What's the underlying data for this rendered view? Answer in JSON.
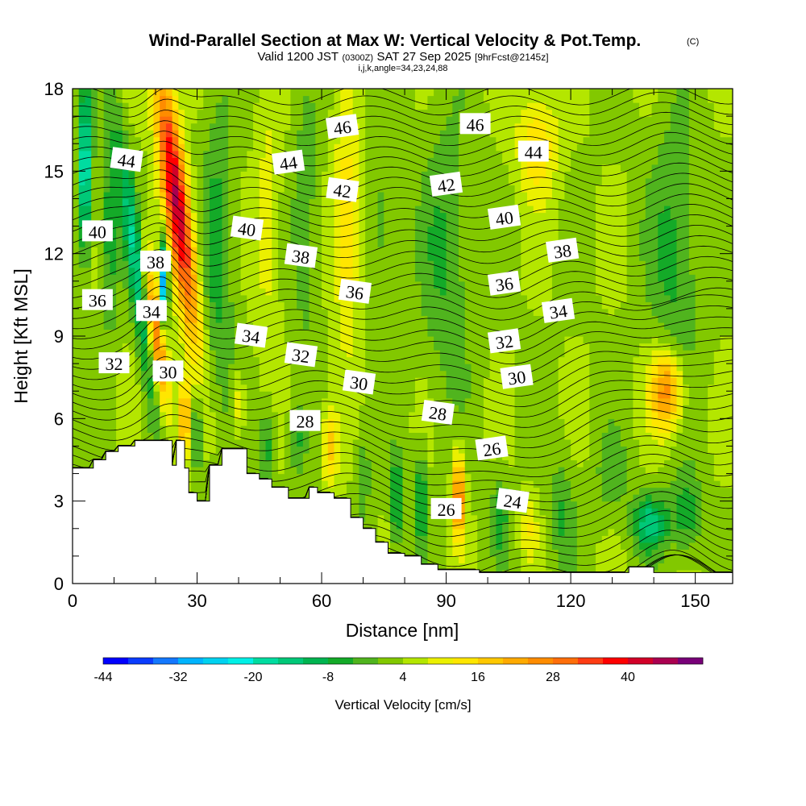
{
  "chart_data": {
    "type": "heatmap",
    "title": "Wind-Parallel Section at Max W: Vertical Velocity & Pot.Temp.",
    "copyright_mark": "(C)",
    "subtitle": {
      "valid_prefix": "Valid 1200 JST",
      "utc": "(0300Z)",
      "date": "SAT 27 Sep 2025",
      "forecast": "[9hrFcst@2145z]"
    },
    "subsubtitle": "i,j,k,angle=34,23,24,88",
    "xlabel": "Distance [nm]",
    "ylabel": "Height [Kft MSL]",
    "xlim": [
      0,
      159
    ],
    "ylim": [
      0,
      18
    ],
    "x_ticks": [
      "0",
      "30",
      "60",
      "90",
      "120",
      "150"
    ],
    "y_ticks": [
      "0",
      "3",
      "6",
      "9",
      "12",
      "15",
      "18"
    ],
    "x_tick_values": [
      0,
      30,
      60,
      90,
      120,
      150
    ],
    "y_tick_values": [
      0,
      3,
      6,
      9,
      12,
      15,
      18
    ],
    "colorbar": {
      "title": "Vertical Velocity [cm/s]",
      "min": -44,
      "max": 52,
      "step": 4,
      "labels": [
        "-44",
        "-32",
        "-20",
        "-8",
        "4",
        "16",
        "28",
        "40"
      ],
      "label_values": [
        -44,
        -32,
        -20,
        -8,
        4,
        16,
        28,
        40
      ],
      "colors": [
        "#0000ff",
        "#0a3cff",
        "#1478ff",
        "#00b4ff",
        "#00d2f0",
        "#00f0e6",
        "#00dca0",
        "#00c878",
        "#00b450",
        "#14aa28",
        "#50b41e",
        "#82c800",
        "#b4e600",
        "#ebf000",
        "#ffe600",
        "#ffc800",
        "#ffaa00",
        "#ff8c00",
        "#ff6e0a",
        "#ff3c14",
        "#ff0000",
        "#d20028",
        "#aa0050",
        "#780078"
      ]
    },
    "terrain_profile": [
      [
        0,
        4.2
      ],
      [
        5,
        4.5
      ],
      [
        8,
        4.8
      ],
      [
        11,
        5.0
      ],
      [
        15,
        5.2
      ],
      [
        24,
        5.2
      ],
      [
        24,
        4.3
      ],
      [
        25,
        4.3
      ],
      [
        25,
        5.2
      ],
      [
        27,
        4.2
      ],
      [
        28,
        3.3
      ],
      [
        29,
        3.3
      ],
      [
        30,
        3.0
      ],
      [
        32,
        3.0
      ],
      [
        33,
        4.3
      ],
      [
        36,
        4.3
      ],
      [
        36,
        4.9
      ],
      [
        42,
        4.9
      ],
      [
        42,
        4.0
      ],
      [
        45,
        3.8
      ],
      [
        48,
        3.5
      ],
      [
        52,
        3.1
      ],
      [
        55,
        3.1
      ],
      [
        57,
        3.5
      ],
      [
        59,
        3.3
      ],
      [
        60,
        3.3
      ],
      [
        61,
        3.3
      ],
      [
        63,
        3.1
      ],
      [
        65,
        3.1
      ],
      [
        67,
        2.4
      ],
      [
        70,
        2.0
      ],
      [
        73,
        1.5
      ],
      [
        76,
        1.1
      ],
      [
        80,
        1.0
      ],
      [
        84,
        0.7
      ],
      [
        88,
        0.5
      ],
      [
        90,
        0.5
      ],
      [
        93,
        0.5
      ],
      [
        98,
        0.4
      ],
      [
        112,
        0.4
      ],
      [
        122,
        0.4
      ],
      [
        134,
        0.4
      ],
      [
        134,
        0.6
      ],
      [
        140,
        0.6
      ],
      [
        140,
        0.4
      ],
      [
        159,
        0.4
      ]
    ],
    "theta_contours_K": [
      24,
      26,
      28,
      30,
      32,
      34,
      36,
      38,
      40,
      42,
      44,
      46
    ],
    "contour_labels": [
      {
        "text": "46",
        "x": 65,
        "y": 16.6
      },
      {
        "text": "46",
        "x": 97,
        "y": 16.7
      },
      {
        "text": "44",
        "x": 13,
        "y": 15.4
      },
      {
        "text": "44",
        "x": 52,
        "y": 15.3
      },
      {
        "text": "44",
        "x": 111,
        "y": 15.7
      },
      {
        "text": "42",
        "x": 65,
        "y": 14.3
      },
      {
        "text": "42",
        "x": 90,
        "y": 14.5
      },
      {
        "text": "40",
        "x": 6,
        "y": 12.8
      },
      {
        "text": "40",
        "x": 42,
        "y": 12.9
      },
      {
        "text": "40",
        "x": 104,
        "y": 13.3
      },
      {
        "text": "38",
        "x": 20,
        "y": 11.7
      },
      {
        "text": "38",
        "x": 55,
        "y": 11.9
      },
      {
        "text": "38",
        "x": 118,
        "y": 12.1
      },
      {
        "text": "36",
        "x": 6,
        "y": 10.3
      },
      {
        "text": "36",
        "x": 68,
        "y": 10.6
      },
      {
        "text": "36",
        "x": 104,
        "y": 10.9
      },
      {
        "text": "34",
        "x": 19,
        "y": 9.9
      },
      {
        "text": "34",
        "x": 43,
        "y": 9.0
      },
      {
        "text": "34",
        "x": 117,
        "y": 9.9
      },
      {
        "text": "32",
        "x": 10,
        "y": 8.0
      },
      {
        "text": "32",
        "x": 55,
        "y": 8.3
      },
      {
        "text": "32",
        "x": 104,
        "y": 8.8
      },
      {
        "text": "30",
        "x": 23,
        "y": 7.7
      },
      {
        "text": "30",
        "x": 69,
        "y": 7.3
      },
      {
        "text": "30",
        "x": 107,
        "y": 7.5
      },
      {
        "text": "28",
        "x": 56,
        "y": 5.9
      },
      {
        "text": "28",
        "x": 88,
        "y": 6.2
      },
      {
        "text": "26",
        "x": 101,
        "y": 4.9
      },
      {
        "text": "26",
        "x": 90,
        "y": 2.7
      },
      {
        "text": "24",
        "x": 106,
        "y": 3.0
      }
    ],
    "w_features": [
      {
        "x": 25,
        "y": 14,
        "sx": 3,
        "sy": 5,
        "v": 40,
        "tilt": -0.28
      },
      {
        "x": 20,
        "y": 9,
        "sx": 2.2,
        "sy": 3,
        "v": 30,
        "tilt": -0.28
      },
      {
        "x": 16,
        "y": 11,
        "sx": 2.2,
        "sy": 5,
        "v": -22,
        "tilt": -0.28
      },
      {
        "x": 3,
        "y": 15,
        "sx": 1.6,
        "sy": 3,
        "v": -26,
        "tilt": 0
      },
      {
        "x": 22,
        "y": 11,
        "sx": 1,
        "sy": 1.5,
        "v": -40,
        "tilt": 0
      },
      {
        "x": 9,
        "y": 13,
        "sx": 2,
        "sy": 4,
        "v": -10,
        "tilt": 0
      },
      {
        "x": 35,
        "y": 12,
        "sx": 4,
        "sy": 6,
        "v": -9,
        "tilt": 0
      },
      {
        "x": 47,
        "y": 13,
        "sx": 3,
        "sy": 4,
        "v": 8,
        "tilt": 0
      },
      {
        "x": 56,
        "y": 13,
        "sx": 3,
        "sy": 4,
        "v": -8,
        "tilt": 0
      },
      {
        "x": 66,
        "y": 13,
        "sx": 3,
        "sy": 4,
        "v": 14,
        "tilt": 0
      },
      {
        "x": 75,
        "y": 13,
        "sx": 3,
        "sy": 3,
        "v": -6,
        "tilt": 0
      },
      {
        "x": 90,
        "y": 12,
        "sx": 6,
        "sy": 5,
        "v": -8,
        "tilt": 0
      },
      {
        "x": 112,
        "y": 16,
        "sx": 5,
        "sy": 2,
        "v": 12,
        "tilt": 0
      },
      {
        "x": 145,
        "y": 12,
        "sx": 6,
        "sy": 5,
        "v": -9,
        "tilt": 0
      },
      {
        "x": 143,
        "y": 7,
        "sx": 4,
        "sy": 1.5,
        "v": 24,
        "tilt": 0
      },
      {
        "x": 30,
        "y": 5.5,
        "sx": 1.5,
        "sy": 1.5,
        "v": -12,
        "tilt": 0
      },
      {
        "x": 27,
        "y": 6,
        "sx": 1.2,
        "sy": 1.5,
        "v": 22,
        "tilt": 0
      },
      {
        "x": 40,
        "y": 6.5,
        "sx": 1.5,
        "sy": 1.2,
        "v": 10,
        "tilt": 0
      },
      {
        "x": 47,
        "y": 5,
        "sx": 2,
        "sy": 1.5,
        "v": -10,
        "tilt": 0
      },
      {
        "x": 54,
        "y": 5.2,
        "sx": 2,
        "sy": 1.2,
        "v": -8,
        "tilt": 0
      },
      {
        "x": 62,
        "y": 5,
        "sx": 2,
        "sy": 1.5,
        "v": 14,
        "tilt": 0
      },
      {
        "x": 70,
        "y": 4,
        "sx": 2,
        "sy": 2,
        "v": -6,
        "tilt": 0
      },
      {
        "x": 78,
        "y": 3,
        "sx": 1.3,
        "sy": 1.6,
        "v": -16,
        "tilt": 0
      },
      {
        "x": 84,
        "y": 3,
        "sx": 1.2,
        "sy": 1.6,
        "v": -16,
        "tilt": 0
      },
      {
        "x": 93,
        "y": 3.2,
        "sx": 1.4,
        "sy": 1.6,
        "v": 28,
        "tilt": 0
      },
      {
        "x": 103,
        "y": 2.5,
        "sx": 2,
        "sy": 1.5,
        "v": -10,
        "tilt": 0
      },
      {
        "x": 110,
        "y": 2,
        "sx": 2,
        "sy": 1.2,
        "v": 8,
        "tilt": 0
      },
      {
        "x": 118,
        "y": 2.5,
        "sx": 3,
        "sy": 2,
        "v": -8,
        "tilt": 0
      },
      {
        "x": 139,
        "y": 2.2,
        "sx": 4,
        "sy": 1,
        "v": -18,
        "tilt": 0
      },
      {
        "x": 148,
        "y": 2.5,
        "sx": 4,
        "sy": 1.5,
        "v": -10,
        "tilt": 0
      },
      {
        "x": 130,
        "y": 4,
        "sx": 4,
        "sy": 1.5,
        "v": -6,
        "tilt": 0
      }
    ]
  }
}
